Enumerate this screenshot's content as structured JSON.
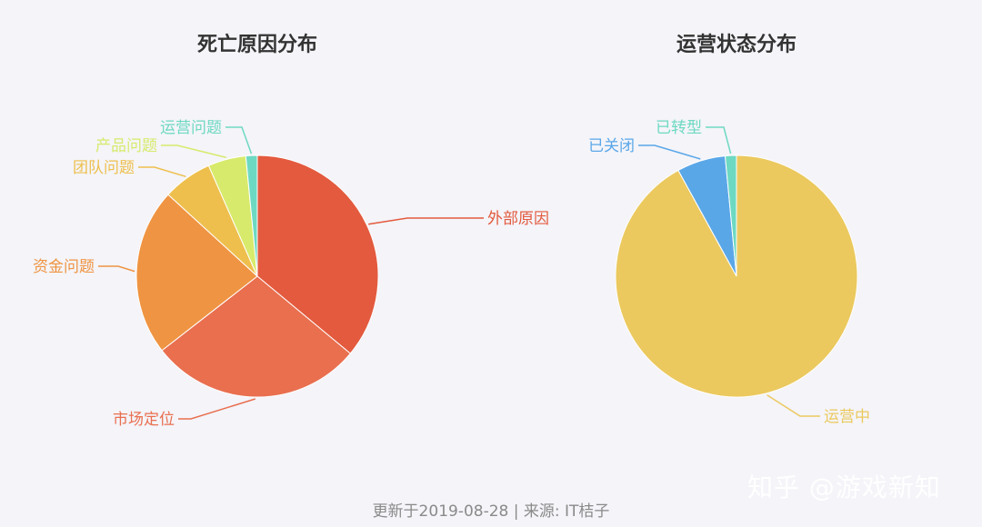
{
  "footer": {
    "text": "更新于2019-08-28 | 来源: IT桔子"
  },
  "watermark": {
    "text": "知乎 @游戏新知"
  },
  "chart_data": [
    {
      "type": "pie",
      "title": "死亡原因分布",
      "slices": [
        {
          "label": "外部原因",
          "value": 35.5,
          "color": "#e35a3e"
        },
        {
          "label": "市场定位",
          "value": 28.0,
          "color": "#e96f4f"
        },
        {
          "label": "资金问题",
          "value": 22.0,
          "color": "#ef9442"
        },
        {
          "label": "团队问题",
          "value": 6.5,
          "color": "#eebf4d"
        },
        {
          "label": "产品问题",
          "value": 5.0,
          "color": "#d8ea6c"
        },
        {
          "label": "运营问题",
          "value": 1.5,
          "color": "#6ed9c2"
        }
      ]
    },
    {
      "type": "pie",
      "title": "运营状态分布",
      "slices": [
        {
          "label": "运营中",
          "value": 92.0,
          "color": "#ebc95f"
        },
        {
          "label": "已关闭",
          "value": 6.5,
          "color": "#5aa7e8"
        },
        {
          "label": "已转型",
          "value": 1.5,
          "color": "#6ed9c2"
        }
      ]
    }
  ]
}
